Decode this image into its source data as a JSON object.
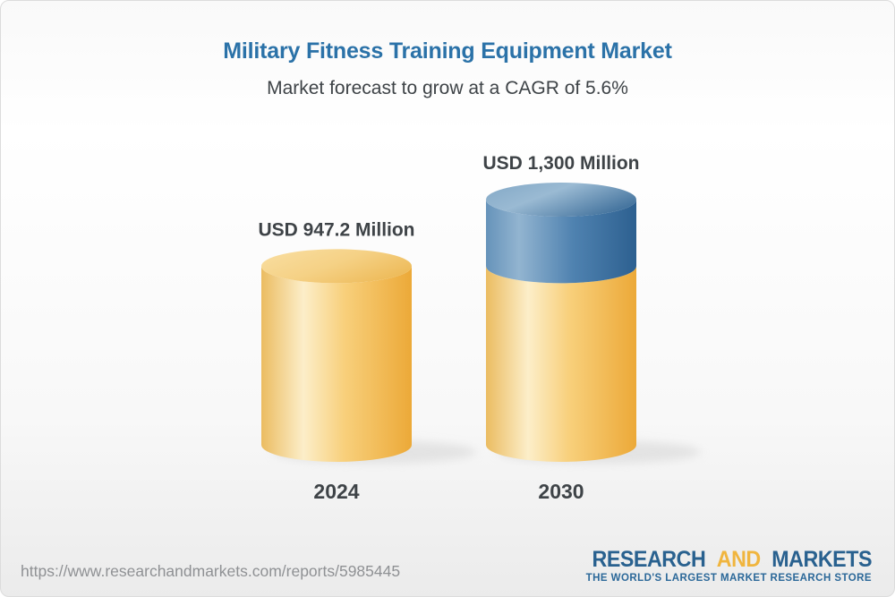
{
  "header": {
    "title": "Military Fitness Training Equipment Market",
    "subtitle": "Market forecast to grow at a CAGR of 5.6%"
  },
  "chart_data": {
    "type": "bar",
    "variant": "3d-stacked-cylinders",
    "title": "Military Fitness Training Equipment Market",
    "subtitle": "Market forecast to grow at a CAGR of 5.6%",
    "unit": "USD Million",
    "cagr_percent": 5.6,
    "categories": [
      "2024",
      "2030"
    ],
    "values": [
      947.2,
      1300
    ],
    "value_labels": [
      "USD 947.2 Million",
      "USD 1,300 Million"
    ],
    "ylim": [
      0,
      1300
    ],
    "grid": false,
    "legend": false,
    "colors": {
      "base_segment_gold": "#F2BE54",
      "growth_segment_blue": "#4A7EAE",
      "label_text": "#3E4347"
    },
    "bars": [
      {
        "category": "2024",
        "value": 947.2,
        "value_label": "USD 947.2 Million",
        "segments": [
          {
            "name": "base",
            "color": "gold",
            "value": 947.2
          }
        ]
      },
      {
        "category": "2030",
        "value": 1300,
        "value_label": "USD 1,300 Million",
        "segments": [
          {
            "name": "base",
            "color": "gold",
            "value": 947.2
          },
          {
            "name": "growth",
            "color": "blue",
            "value": 352.8
          }
        ]
      }
    ]
  },
  "footer": {
    "url": "https://www.researchandmarkets.com/reports/5985445",
    "logo": {
      "word1": "RESEARCH",
      "word2": "AND",
      "word3": "MARKETS",
      "tagline": "THE WORLD'S LARGEST MARKET RESEARCH STORE",
      "colors": {
        "primary": "#29618F",
        "accent": "#F0B53E"
      }
    }
  }
}
